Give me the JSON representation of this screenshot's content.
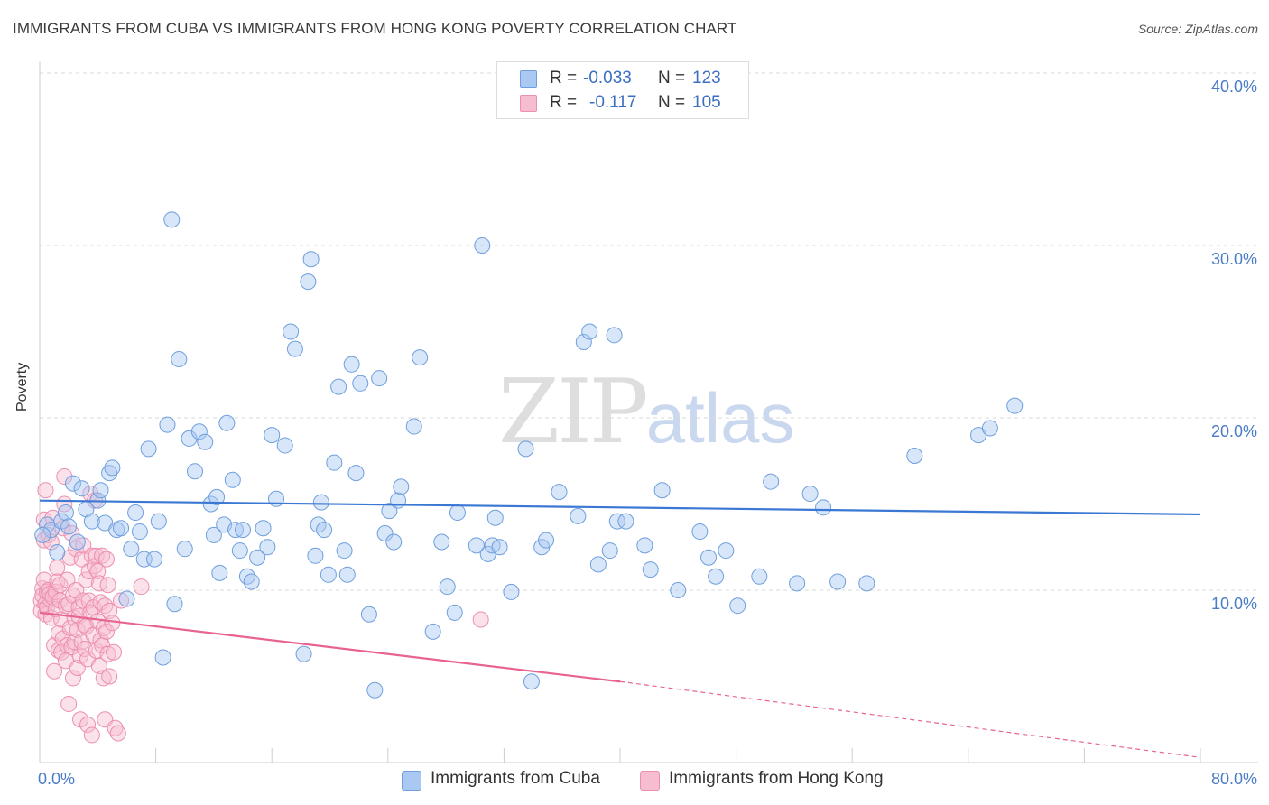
{
  "header": {
    "title": "IMMIGRANTS FROM CUBA VS IMMIGRANTS FROM HONG KONG POVERTY CORRELATION CHART",
    "source": "Source: ZipAtlas.com"
  },
  "watermark": {
    "part1": "ZIP",
    "part2": "atlas"
  },
  "legend": {
    "rows": [
      {
        "r_label": "R =",
        "r_value": "-0.033",
        "n_label": "N =",
        "n_value": "123",
        "color": "#a9c8f2"
      },
      {
        "r_label": "R =",
        "r_value": "-0.117",
        "n_label": "N =",
        "n_value": "105",
        "color": "#f6bcd0"
      }
    ]
  },
  "axes": {
    "ylabel": "Poverty",
    "yticks": [
      "40.0%",
      "30.0%",
      "20.0%",
      "10.0%"
    ],
    "xtick_left": "0.0%",
    "xtick_right": "80.0%"
  },
  "bottom_legend": {
    "cuba": "Immigrants from Cuba",
    "hongkong": "Immigrants from Hong Kong"
  },
  "colors": {
    "cuba_fill": "#a9c8f2",
    "cuba_stroke": "#6f9fdd",
    "cuba_line": "#3b78d4",
    "hk_fill": "#f6bcd0",
    "hk_stroke": "#ec8fb0",
    "hk_line": "#e8638f",
    "grid": "#d8d8d8",
    "tick_text": "#4a7cc7"
  },
  "chart_data": {
    "type": "scatter",
    "title": "IMMIGRANTS FROM CUBA VS IMMIGRANTS FROM HONG KONG POVERTY CORRELATION CHART",
    "xlabel": "",
    "ylabel": "Poverty",
    "xlim": [
      0,
      80
    ],
    "ylim": [
      0,
      40
    ],
    "grid": true,
    "legend_position": "top-center",
    "series": [
      {
        "name": "Immigrants from Cuba",
        "R": -0.033,
        "N": 123,
        "trend": {
          "x": [
            0,
            80
          ],
          "y": [
            15.2,
            14.4
          ],
          "style": "solid"
        },
        "points": [
          [
            0.5,
            13.8
          ],
          [
            0.8,
            13.5
          ],
          [
            1.2,
            12.2
          ],
          [
            1.5,
            14.0
          ],
          [
            1.8,
            14.5
          ],
          [
            2.0,
            13.7
          ],
          [
            2.3,
            16.2
          ],
          [
            2.6,
            12.8
          ],
          [
            2.9,
            15.9
          ],
          [
            3.2,
            14.7
          ],
          [
            3.6,
            14.0
          ],
          [
            4.0,
            15.2
          ],
          [
            4.2,
            15.8
          ],
          [
            4.5,
            13.9
          ],
          [
            4.8,
            16.8
          ],
          [
            5.0,
            17.1
          ],
          [
            5.3,
            13.5
          ],
          [
            5.6,
            13.6
          ],
          [
            6.0,
            9.5
          ],
          [
            6.3,
            12.4
          ],
          [
            6.6,
            14.5
          ],
          [
            6.9,
            13.4
          ],
          [
            7.2,
            11.8
          ],
          [
            7.5,
            18.2
          ],
          [
            7.9,
            11.8
          ],
          [
            8.2,
            14.0
          ],
          [
            8.5,
            6.1
          ],
          [
            8.8,
            19.6
          ],
          [
            9.1,
            31.5
          ],
          [
            9.3,
            9.2
          ],
          [
            9.6,
            23.4
          ],
          [
            10.0,
            12.4
          ],
          [
            10.3,
            18.8
          ],
          [
            10.7,
            16.9
          ],
          [
            11.0,
            19.2
          ],
          [
            11.4,
            18.6
          ],
          [
            11.8,
            15.0
          ],
          [
            12.0,
            13.2
          ],
          [
            12.2,
            15.4
          ],
          [
            12.4,
            11.0
          ],
          [
            12.7,
            13.8
          ],
          [
            12.9,
            19.7
          ],
          [
            13.3,
            16.4
          ],
          [
            13.5,
            13.5
          ],
          [
            13.8,
            12.3
          ],
          [
            14.0,
            13.5
          ],
          [
            14.3,
            10.8
          ],
          [
            14.6,
            10.5
          ],
          [
            15.0,
            11.9
          ],
          [
            15.4,
            13.6
          ],
          [
            15.7,
            12.5
          ],
          [
            16.0,
            19.0
          ],
          [
            16.3,
            15.3
          ],
          [
            16.9,
            18.4
          ],
          [
            17.3,
            25.0
          ],
          [
            17.6,
            24.0
          ],
          [
            18.2,
            6.3
          ],
          [
            18.5,
            27.9
          ],
          [
            18.7,
            29.2
          ],
          [
            19.0,
            12.0
          ],
          [
            19.2,
            13.8
          ],
          [
            19.4,
            15.1
          ],
          [
            19.6,
            13.5
          ],
          [
            19.9,
            10.9
          ],
          [
            20.3,
            17.4
          ],
          [
            20.6,
            21.8
          ],
          [
            21.0,
            12.3
          ],
          [
            21.2,
            10.9
          ],
          [
            21.5,
            23.1
          ],
          [
            21.8,
            16.8
          ],
          [
            22.1,
            22.0
          ],
          [
            22.7,
            8.6
          ],
          [
            23.1,
            4.2
          ],
          [
            23.4,
            22.3
          ],
          [
            23.8,
            13.3
          ],
          [
            24.1,
            14.6
          ],
          [
            24.4,
            12.8
          ],
          [
            24.7,
            15.2
          ],
          [
            24.9,
            16.0
          ],
          [
            25.8,
            19.5
          ],
          [
            26.2,
            23.5
          ],
          [
            27.1,
            7.6
          ],
          [
            27.7,
            12.8
          ],
          [
            28.1,
            10.2
          ],
          [
            28.6,
            8.7
          ],
          [
            28.8,
            14.5
          ],
          [
            30.1,
            12.6
          ],
          [
            30.5,
            30.0
          ],
          [
            30.9,
            12.1
          ],
          [
            31.2,
            12.6
          ],
          [
            31.4,
            14.2
          ],
          [
            31.7,
            12.5
          ],
          [
            32.5,
            9.9
          ],
          [
            33.5,
            18.2
          ],
          [
            33.9,
            4.7
          ],
          [
            34.6,
            12.5
          ],
          [
            34.9,
            12.9
          ],
          [
            35.8,
            15.7
          ],
          [
            37.1,
            14.3
          ],
          [
            37.5,
            24.4
          ],
          [
            37.9,
            25.0
          ],
          [
            38.5,
            11.5
          ],
          [
            39.3,
            12.3
          ],
          [
            39.6,
            24.8
          ],
          [
            39.8,
            14.0
          ],
          [
            40.4,
            14.0
          ],
          [
            41.7,
            12.6
          ],
          [
            42.1,
            11.2
          ],
          [
            42.9,
            15.8
          ],
          [
            44.0,
            10.0
          ],
          [
            45.5,
            13.4
          ],
          [
            46.1,
            11.9
          ],
          [
            46.6,
            10.8
          ],
          [
            47.3,
            12.3
          ],
          [
            48.1,
            9.1
          ],
          [
            49.6,
            10.8
          ],
          [
            50.4,
            16.3
          ],
          [
            52.2,
            10.4
          ],
          [
            53.1,
            15.6
          ],
          [
            54.0,
            14.8
          ],
          [
            55.0,
            10.5
          ],
          [
            57.0,
            10.4
          ],
          [
            60.3,
            17.8
          ],
          [
            64.7,
            19.0
          ],
          [
            65.5,
            19.4
          ],
          [
            67.2,
            20.7
          ],
          [
            0.2,
            13.2
          ]
        ]
      },
      {
        "name": "Immigrants from Hong Kong",
        "R": -0.117,
        "N": 105,
        "trend": {
          "x": [
            0,
            40,
            80
          ],
          "y": [
            8.7,
            4.7,
            0.3
          ],
          "style": "solid-then-dashed",
          "solid_until_x": 40
        },
        "points": [
          [
            0.1,
            9.4
          ],
          [
            0.1,
            8.8
          ],
          [
            0.2,
            10.1
          ],
          [
            0.2,
            9.7
          ],
          [
            0.3,
            12.9
          ],
          [
            0.3,
            14.1
          ],
          [
            0.3,
            10.6
          ],
          [
            0.4,
            9.2
          ],
          [
            0.4,
            8.6
          ],
          [
            0.4,
            15.8
          ],
          [
            0.5,
            9.0
          ],
          [
            0.5,
            9.9
          ],
          [
            0.6,
            13.2
          ],
          [
            0.6,
            10.0
          ],
          [
            0.7,
            9.5
          ],
          [
            0.7,
            9.8
          ],
          [
            0.8,
            12.8
          ],
          [
            0.8,
            8.4
          ],
          [
            0.9,
            14.2
          ],
          [
            0.9,
            9.6
          ],
          [
            1.0,
            6.8
          ],
          [
            1.0,
            5.3
          ],
          [
            1.1,
            9.9
          ],
          [
            1.1,
            8.9
          ],
          [
            1.2,
            11.3
          ],
          [
            1.2,
            10.5
          ],
          [
            1.3,
            7.5
          ],
          [
            1.3,
            6.5
          ],
          [
            1.4,
            9.4
          ],
          [
            1.4,
            10.3
          ],
          [
            1.5,
            6.4
          ],
          [
            1.5,
            8.3
          ],
          [
            1.6,
            7.2
          ],
          [
            1.6,
            13.6
          ],
          [
            1.7,
            15.0
          ],
          [
            1.7,
            16.6
          ],
          [
            1.8,
            9.1
          ],
          [
            1.8,
            5.9
          ],
          [
            1.9,
            10.6
          ],
          [
            1.9,
            6.8
          ],
          [
            2.0,
            9.2
          ],
          [
            2.0,
            3.4
          ],
          [
            2.1,
            7.8
          ],
          [
            2.1,
            11.9
          ],
          [
            2.2,
            6.7
          ],
          [
            2.2,
            13.3
          ],
          [
            2.3,
            4.9
          ],
          [
            2.3,
            9.7
          ],
          [
            2.4,
            8.4
          ],
          [
            2.4,
            7.0
          ],
          [
            2.5,
            12.4
          ],
          [
            2.5,
            10.0
          ],
          [
            2.6,
            5.5
          ],
          [
            2.6,
            7.7
          ],
          [
            2.7,
            8.5
          ],
          [
            2.7,
            9.0
          ],
          [
            2.8,
            6.2
          ],
          [
            2.8,
            2.5
          ],
          [
            2.9,
            11.8
          ],
          [
            2.9,
            7.0
          ],
          [
            3.0,
            9.4
          ],
          [
            3.0,
            12.6
          ],
          [
            3.1,
            6.6
          ],
          [
            3.1,
            8.0
          ],
          [
            3.2,
            10.6
          ],
          [
            3.2,
            7.9
          ],
          [
            3.3,
            2.2
          ],
          [
            3.3,
            6.0
          ],
          [
            3.4,
            9.4
          ],
          [
            3.4,
            11.1
          ],
          [
            3.5,
            15.6
          ],
          [
            3.5,
            8.7
          ],
          [
            3.6,
            12.0
          ],
          [
            3.6,
            1.6
          ],
          [
            3.7,
            9.0
          ],
          [
            3.7,
            7.4
          ],
          [
            3.8,
            15.2
          ],
          [
            3.8,
            11.4
          ],
          [
            3.9,
            6.5
          ],
          [
            3.9,
            12.0
          ],
          [
            4.0,
            8.2
          ],
          [
            4.0,
            11.1
          ],
          [
            4.1,
            10.4
          ],
          [
            4.1,
            5.6
          ],
          [
            4.2,
            7.1
          ],
          [
            4.2,
            9.3
          ],
          [
            4.3,
            12.0
          ],
          [
            4.3,
            6.8
          ],
          [
            4.4,
            7.8
          ],
          [
            4.4,
            4.9
          ],
          [
            4.5,
            9.1
          ],
          [
            4.5,
            2.5
          ],
          [
            4.6,
            7.6
          ],
          [
            4.6,
            11.8
          ],
          [
            4.7,
            6.3
          ],
          [
            4.7,
            10.3
          ],
          [
            4.8,
            8.8
          ],
          [
            4.8,
            5.0
          ],
          [
            5.0,
            8.1
          ],
          [
            5.1,
            6.4
          ],
          [
            5.2,
            2.0
          ],
          [
            5.4,
            1.7
          ],
          [
            5.6,
            9.4
          ],
          [
            7.0,
            10.2
          ],
          [
            30.4,
            8.3
          ]
        ]
      }
    ]
  }
}
